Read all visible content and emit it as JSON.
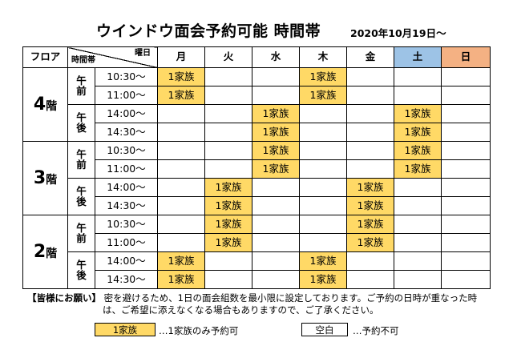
{
  "title": "ウインドウ面会予約可能 時間帯",
  "date": "2020年10月19日～",
  "header": {
    "floor": "フロア",
    "day_label": "曜日",
    "time_label": "時間帯",
    "days": [
      "月",
      "火",
      "水",
      "木",
      "金",
      "土",
      "日"
    ]
  },
  "colors": {
    "reserved": "#ffd966",
    "saturday": "#9dc3e6",
    "sunday": "#f4b183"
  },
  "floors": [
    {
      "num": "4",
      "kai": "階",
      "am": "午\n前",
      "pm": "午\n後",
      "slots": [
        {
          "time": "10:30～",
          "cells": [
            "1家族",
            "",
            "",
            "1家族",
            "",
            "",
            ""
          ]
        },
        {
          "time": "11:00～",
          "cells": [
            "1家族",
            "",
            "",
            "1家族",
            "",
            "",
            ""
          ]
        },
        {
          "time": "14:00～",
          "cells": [
            "",
            "",
            "1家族",
            "",
            "",
            "1家族",
            ""
          ]
        },
        {
          "time": "14:30～",
          "cells": [
            "",
            "",
            "1家族",
            "",
            "",
            "1家族",
            ""
          ]
        }
      ]
    },
    {
      "num": "3",
      "kai": "階",
      "am": "午\n前",
      "pm": "午\n後",
      "slots": [
        {
          "time": "10:30～",
          "cells": [
            "",
            "",
            "1家族",
            "",
            "",
            "1家族",
            ""
          ]
        },
        {
          "time": "11:00～",
          "cells": [
            "",
            "",
            "1家族",
            "",
            "",
            "1家族",
            ""
          ]
        },
        {
          "time": "14:00～",
          "cells": [
            "",
            "1家族",
            "",
            "",
            "1家族",
            "",
            ""
          ]
        },
        {
          "time": "14:30～",
          "cells": [
            "",
            "1家族",
            "",
            "",
            "1家族",
            "",
            ""
          ]
        }
      ]
    },
    {
      "num": "2",
      "kai": "階",
      "am": "午\n前",
      "pm": "午\n後",
      "slots": [
        {
          "time": "10:30～",
          "cells": [
            "",
            "1家族",
            "",
            "",
            "1家族",
            "",
            ""
          ]
        },
        {
          "time": "11:00～",
          "cells": [
            "",
            "1家族",
            "",
            "",
            "1家族",
            "",
            ""
          ]
        },
        {
          "time": "14:00～",
          "cells": [
            "1家族",
            "",
            "",
            "1家族",
            "",
            "",
            ""
          ]
        },
        {
          "time": "14:30～",
          "cells": [
            "1家族",
            "",
            "",
            "1家族",
            "",
            "",
            ""
          ]
        }
      ]
    }
  ],
  "note": {
    "label": "【皆様にお願い】",
    "line1": "密を避けるため、1日の面会組数を最小限に設定しております。ご予約の日時が重なった時",
    "line2": "は、ご希望に添えなくなる場合もありますので、ご了承ください。"
  },
  "legend": {
    "reserved_box": "1家族",
    "reserved_text": "…1家族のみ予約可",
    "empty_box": "空白",
    "empty_text": "…予約不可"
  }
}
